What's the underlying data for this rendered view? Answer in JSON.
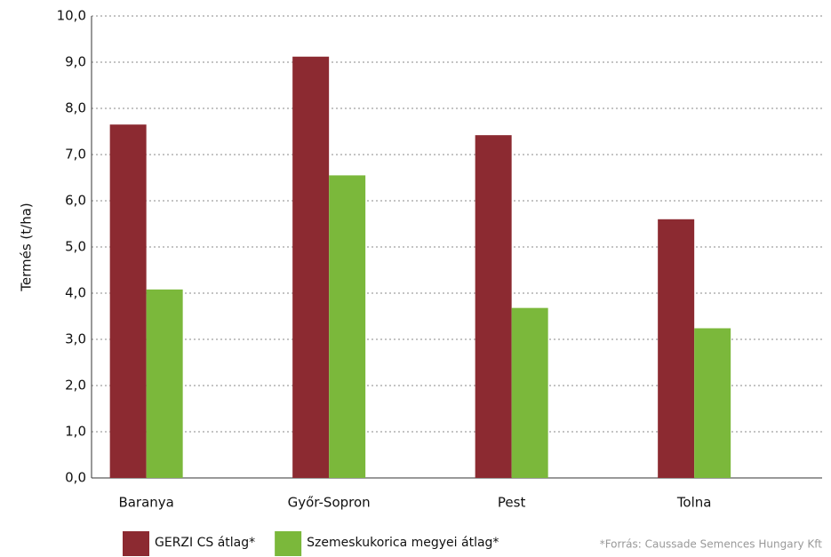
{
  "chart_data": {
    "type": "bar",
    "y_label": "Termés (t/ha)",
    "categories": [
      "Baranya",
      "Győr-Sopron",
      "Pest",
      "Tolna"
    ],
    "series": [
      {
        "name": "GERZI CS átlag*",
        "color": "#8c2a31",
        "values": [
          7.65,
          9.12,
          7.42,
          5.6
        ]
      },
      {
        "name": "Szemeskukorica megyei átlag*",
        "color": "#7bb83b",
        "values": [
          4.08,
          6.55,
          3.68,
          3.24
        ]
      }
    ],
    "ylim": [
      0,
      10
    ],
    "yticks": [
      {
        "value": 0,
        "label": "0,0"
      },
      {
        "value": 1,
        "label": "1,0"
      },
      {
        "value": 2,
        "label": "2,0"
      },
      {
        "value": 3,
        "label": "3,0"
      },
      {
        "value": 4,
        "label": "4,0"
      },
      {
        "value": 5,
        "label": "5,0"
      },
      {
        "value": 6,
        "label": "6,0"
      },
      {
        "value": 7,
        "label": "7,0"
      },
      {
        "value": 8,
        "label": "8,0"
      },
      {
        "value": 9,
        "label": "9,0"
      },
      {
        "value": 10,
        "label": "10,0"
      }
    ],
    "grid": true,
    "legend": "bottom",
    "source": "*Forrás:  Caussade Semences Hungary Kft"
  }
}
